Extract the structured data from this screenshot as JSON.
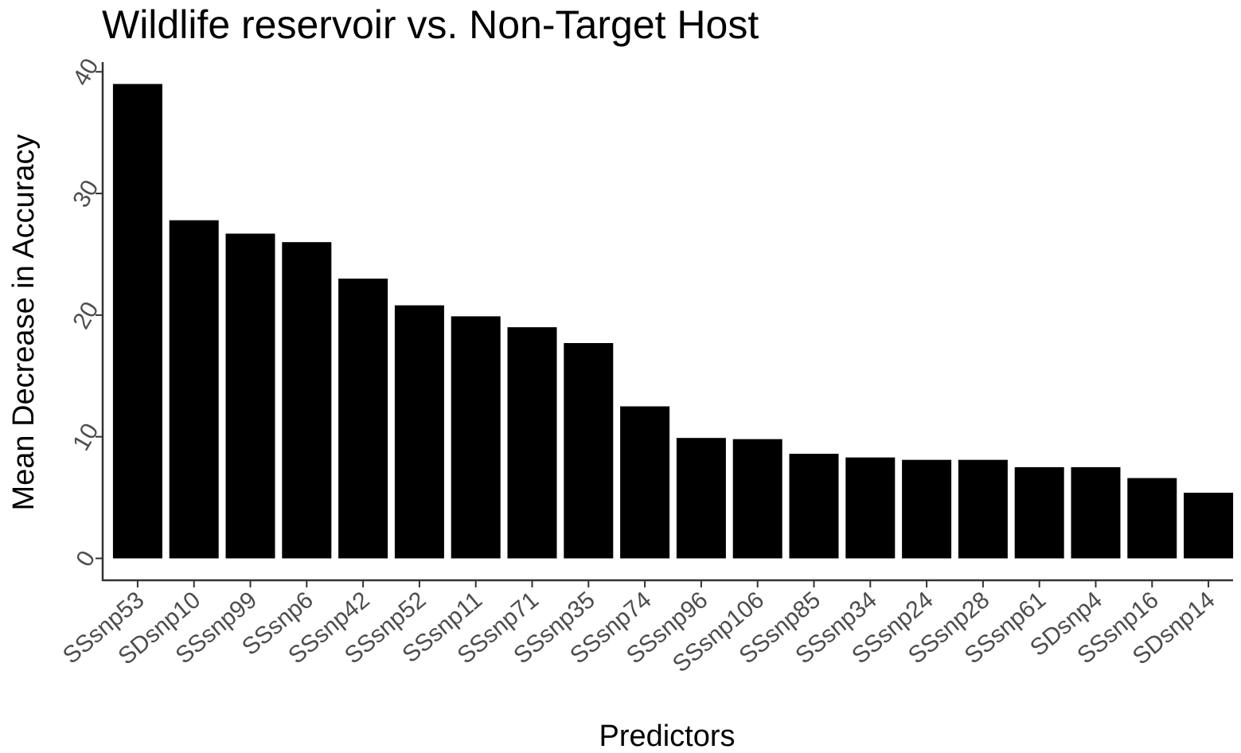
{
  "chart_data": {
    "type": "bar",
    "title": "Wildlife reservoir vs. Non-Target Host",
    "xlabel": "Predictors",
    "ylabel": "Mean Decrease in Accuracy",
    "categories": [
      "SSsnp53",
      "SDsnp10",
      "SSsnp99",
      "SSsnp6",
      "SSsnp42",
      "SSsnp52",
      "SSsnp11",
      "SSsnp71",
      "SSsnp35",
      "SSsnp74",
      "SSsnp96",
      "SSsnp106",
      "SSsnp85",
      "SSsnp34",
      "SSsnp24",
      "SSsnp28",
      "SSsnp61",
      "SDsnp4",
      "SSsnp16",
      "SDsnp14"
    ],
    "values": [
      39.0,
      27.8,
      26.7,
      26.0,
      23.0,
      20.8,
      19.9,
      19.0,
      17.7,
      12.5,
      9.9,
      9.8,
      8.6,
      8.3,
      8.1,
      8.1,
      7.5,
      7.5,
      6.6,
      5.4
    ],
    "yticks": [
      "0",
      "10",
      "20",
      "30",
      "40"
    ],
    "ylim": [
      -1.8,
      40.8
    ],
    "grid": false,
    "legend": "none",
    "bar_color": "#000000",
    "axis_color": "#333333",
    "tick_label_color": "#4d4d4d"
  }
}
